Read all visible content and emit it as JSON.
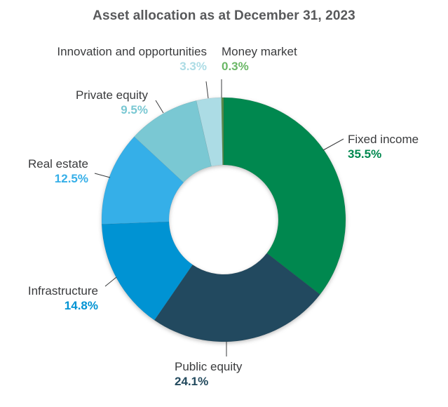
{
  "title": "Asset allocation as at December 31, 2023",
  "chart_data": {
    "type": "pie",
    "variant": "donut",
    "title": "Asset allocation as at December 31, 2023",
    "unit": "%",
    "categories": [
      "Fixed income",
      "Public equity",
      "Infrastructure",
      "Real estate",
      "Private equity",
      "Innovation and opportunities",
      "Money market"
    ],
    "values": [
      35.5,
      24.1,
      14.8,
      12.5,
      9.5,
      3.3,
      0.3
    ],
    "colors": [
      "#00884f",
      "#234a5e",
      "#0093d3",
      "#36afe8",
      "#7ac8d3",
      "#acdce5",
      "#5a8a4a"
    ],
    "label_colors": [
      "#00884f",
      "#234a5e",
      "#0093d3",
      "#36afe8",
      "#7ac8d3",
      "#acdce5",
      "#6ab766"
    ],
    "start_angle_deg": 0,
    "direction": "clockwise",
    "legend": "none (direct labels)"
  },
  "labels": {
    "fixed_income": {
      "name": "Fixed income",
      "pct": "35.5%"
    },
    "public_equity": {
      "name": "Public equity",
      "pct": "24.1%"
    },
    "infrastructure": {
      "name": "Infrastructure",
      "pct": "14.8%"
    },
    "real_estate": {
      "name": "Real estate",
      "pct": "12.5%"
    },
    "private_equity": {
      "name": "Private equity",
      "pct": "9.5%"
    },
    "innovation": {
      "name": "Innovation and opportunities",
      "pct": "3.3%"
    },
    "money_market": {
      "name": "Money market",
      "pct": "0.3%"
    }
  }
}
